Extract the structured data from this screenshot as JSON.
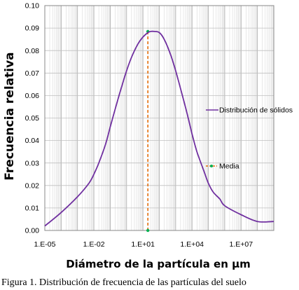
{
  "chart_data": {
    "type": "line",
    "xscale": "log",
    "xlim": [
      1e-05,
      1000000000.0
    ],
    "ylim": [
      0,
      0.1
    ],
    "xticks": [
      1e-05,
      0.01,
      10,
      10000.0,
      10000000.0
    ],
    "xtick_labels": [
      "1.E-05",
      "1.E-02",
      "1.E+01",
      "1.E+04",
      "1.E+07"
    ],
    "yticks": [
      0,
      0.01,
      0.02,
      0.03,
      0.04,
      0.05,
      0.06,
      0.07,
      0.08,
      0.09,
      0.1
    ],
    "ytick_labels": [
      "0.00",
      "0.01",
      "0.02",
      "0.03",
      "0.04",
      "0.05",
      "0.06",
      "0.07",
      "0.08",
      "0.09",
      "0.10"
    ],
    "xlabel": "Diámetro de la partícula en µm",
    "ylabel": "Frecuencia relativa",
    "grid": true,
    "series": [
      {
        "name": "Distribución de sólidos",
        "color": "#7030a0",
        "x": [
          1e-05,
          0.0001,
          0.001,
          0.005,
          0.01,
          0.02,
          0.05,
          0.1,
          0.2,
          0.5,
          1,
          2,
          5,
          10,
          20,
          30,
          50,
          100,
          200,
          500,
          1000,
          2000,
          5000,
          10000,
          20000,
          50000,
          100000,
          200000,
          500000,
          1000000,
          10000000,
          100000000,
          1000000000
        ],
        "y": [
          0.002,
          0.008,
          0.015,
          0.021,
          0.025,
          0.03,
          0.038,
          0.046,
          0.054,
          0.064,
          0.071,
          0.077,
          0.083,
          0.086,
          0.088,
          0.0885,
          0.0885,
          0.088,
          0.085,
          0.078,
          0.071,
          0.063,
          0.052,
          0.043,
          0.035,
          0.027,
          0.021,
          0.017,
          0.014,
          0.011,
          0.007,
          0.004,
          0.004
        ]
      },
      {
        "name": "Media",
        "color_line": "#e36c09",
        "color_marker": "#00b050",
        "x": [
          20,
          20
        ],
        "y": [
          0,
          0.0885
        ]
      }
    ],
    "legend": {
      "entries": [
        "Distribución de sólidos",
        "Media"
      ],
      "placement": "right"
    }
  },
  "caption": "Figura 1. Distribución de frecuencia de las partículas del suelo"
}
